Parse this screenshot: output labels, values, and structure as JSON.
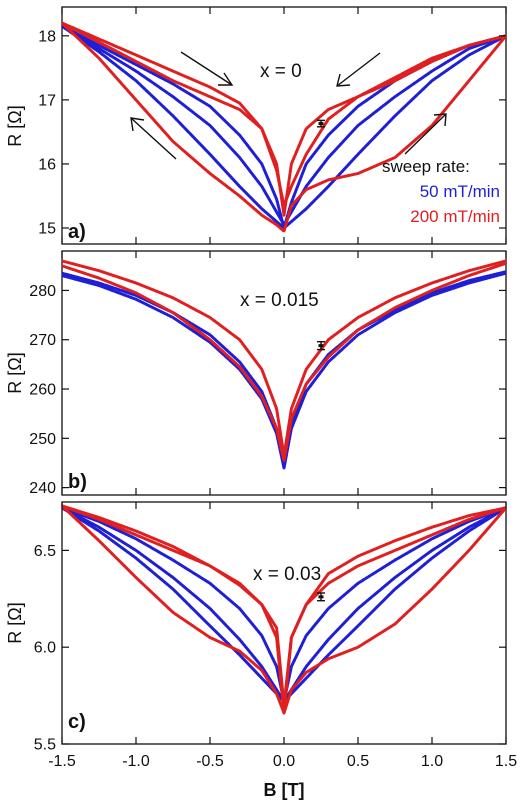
{
  "chart_data": [
    {
      "type": "line",
      "panel_label": "a)",
      "annotation": "x = 0",
      "ylabel": "R [Ω]",
      "xlim": [
        -1.5,
        1.5
      ],
      "ylim": [
        14.75,
        18.45
      ],
      "xticks": [
        -1.5,
        -1.0,
        -0.5,
        0.0,
        0.5,
        1.0,
        1.5
      ],
      "yticks": [
        15,
        16,
        17,
        18
      ],
      "ytick_labels": [
        "15",
        "16",
        "17",
        "18"
      ],
      "legend": {
        "title": "sweep rate:",
        "entries": [
          "50 mT/min",
          "200 mT/min"
        ],
        "placement": "bottom-right"
      },
      "error_bar": {
        "x": 0.25,
        "y": 16.63,
        "err": 0.05
      },
      "series": [
        {
          "color": "#1f1fd6",
          "x": [
            -1.5,
            -1.25,
            -1.0,
            -0.75,
            -0.5,
            -0.3,
            -0.15,
            -0.05,
            0.0,
            0.05,
            0.15,
            0.3,
            0.5,
            0.75,
            1.0,
            1.25,
            1.5
          ],
          "y": [
            18.15,
            17.8,
            17.45,
            17.05,
            16.6,
            16.1,
            15.65,
            15.25,
            15.05,
            15.25,
            15.65,
            16.1,
            16.6,
            17.05,
            17.45,
            17.8,
            18.0
          ]
        },
        {
          "color": "#1f1fd6",
          "x": [
            -1.5,
            -1.25,
            -1.0,
            -0.75,
            -0.5,
            -0.3,
            -0.15,
            -0.05,
            0.0,
            0.05,
            0.15,
            0.3,
            0.5,
            0.75,
            1.0,
            1.25,
            1.5
          ],
          "y": [
            18.15,
            17.75,
            17.3,
            16.75,
            16.15,
            15.65,
            15.3,
            15.1,
            15.0,
            15.4,
            16.0,
            16.45,
            16.9,
            17.3,
            17.6,
            17.85,
            18.0
          ]
        },
        {
          "color": "#1f1fd6",
          "x": [
            -1.5,
            -1.25,
            -1.0,
            -0.75,
            -0.5,
            -0.3,
            -0.15,
            -0.05,
            0.0,
            0.05,
            0.15,
            0.3,
            0.5,
            0.75,
            1.0,
            1.25,
            1.5
          ],
          "y": [
            18.15,
            17.85,
            17.55,
            17.25,
            16.9,
            16.45,
            16.0,
            15.45,
            15.0,
            15.1,
            15.3,
            15.65,
            16.15,
            16.75,
            17.3,
            17.7,
            18.0
          ]
        },
        {
          "color": "#e02020",
          "x": [
            -1.5,
            -1.25,
            -1.0,
            -0.75,
            -0.5,
            -0.3,
            -0.15,
            -0.05,
            0.0,
            0.05,
            0.15,
            0.3,
            0.5,
            0.75,
            1.0,
            1.25,
            1.5
          ],
          "y": [
            18.2,
            17.9,
            17.6,
            17.3,
            17.05,
            16.85,
            16.55,
            16.0,
            15.2,
            16.0,
            16.55,
            16.85,
            17.05,
            17.3,
            17.6,
            17.85,
            18.0
          ]
        },
        {
          "color": "#e02020",
          "x": [
            -1.5,
            -1.25,
            -1.0,
            -0.75,
            -0.5,
            -0.3,
            -0.15,
            -0.05,
            0.0,
            0.05,
            0.15,
            0.3,
            0.5,
            0.75,
            1.0,
            1.25,
            1.5
          ],
          "y": [
            18.2,
            17.65,
            17.0,
            16.35,
            15.85,
            15.5,
            15.2,
            15.05,
            14.95,
            15.35,
            15.6,
            15.75,
            15.85,
            16.1,
            16.6,
            17.3,
            18.0
          ]
        },
        {
          "color": "#e02020",
          "x": [
            -1.5,
            -1.25,
            -1.0,
            -0.75,
            -0.5,
            -0.3,
            -0.15,
            -0.05,
            0.0,
            0.05,
            0.15,
            0.3,
            0.5,
            0.75,
            1.0,
            1.25,
            1.5
          ],
          "y": [
            18.2,
            17.95,
            17.7,
            17.45,
            17.2,
            16.95,
            16.55,
            15.9,
            15.35,
            15.65,
            16.15,
            16.7,
            17.05,
            17.35,
            17.65,
            17.85,
            18.0
          ]
        }
      ]
    },
    {
      "type": "line",
      "panel_label": "b)",
      "annotation": "x = 0.015",
      "ylabel": "R [Ω]",
      "xlim": [
        -1.5,
        1.5
      ],
      "ylim": [
        238.5,
        288
      ],
      "xticks": [
        -1.5,
        -1.0,
        -0.5,
        0.0,
        0.5,
        1.0,
        1.5
      ],
      "yticks": [
        240,
        250,
        260,
        270,
        280
      ],
      "ytick_labels": [
        "240",
        "250",
        "260",
        "270",
        "280"
      ],
      "error_bar": {
        "x": 0.25,
        "y": 268.8,
        "err": 0.8
      },
      "series": [
        {
          "color": "#1f1fd6",
          "x": [
            -1.5,
            -1.25,
            -1.0,
            -0.75,
            -0.5,
            -0.3,
            -0.15,
            -0.05,
            0.0,
            0.05,
            0.15,
            0.3,
            0.5,
            0.75,
            1.0,
            1.25,
            1.5
          ],
          "y": [
            283.5,
            281.5,
            279.0,
            275.5,
            271.0,
            265.5,
            259.5,
            252.0,
            244.0,
            252.0,
            259.5,
            265.5,
            271.0,
            275.5,
            279.0,
            281.5,
            283.5
          ]
        },
        {
          "color": "#1f1fd6",
          "x": [
            -1.5,
            -1.25,
            -1.0,
            -0.75,
            -0.5,
            -0.3,
            -0.15,
            -0.05,
            0.0,
            0.05,
            0.15,
            0.3,
            0.5,
            0.75,
            1.0,
            1.25,
            1.5
          ],
          "y": [
            283.0,
            281.0,
            278.2,
            274.5,
            269.5,
            264.0,
            258.0,
            251.0,
            244.0,
            253.0,
            261.0,
            267.0,
            272.0,
            276.0,
            279.5,
            282.0,
            283.8
          ]
        },
        {
          "color": "#e02020",
          "x": [
            -1.5,
            -1.25,
            -1.0,
            -0.75,
            -0.5,
            -0.3,
            -0.15,
            -0.05,
            0.0,
            0.05,
            0.15,
            0.3,
            0.5,
            0.75,
            1.0,
            1.25,
            1.5
          ],
          "y": [
            286.0,
            284.0,
            281.5,
            278.5,
            274.5,
            270.0,
            264.0,
            256.0,
            246.5,
            256.0,
            264.0,
            270.0,
            274.5,
            278.5,
            281.5,
            284.0,
            286.0
          ]
        },
        {
          "color": "#e02020",
          "x": [
            -1.5,
            -1.25,
            -1.0,
            -0.75,
            -0.5,
            -0.3,
            -0.15,
            -0.05,
            0.0,
            0.05,
            0.15,
            0.3,
            0.5,
            0.75,
            1.0,
            1.25,
            1.5
          ],
          "y": [
            285.0,
            282.5,
            279.5,
            275.5,
            270.0,
            264.5,
            258.5,
            252.0,
            245.5,
            254.0,
            261.0,
            266.5,
            272.0,
            276.5,
            280.0,
            283.0,
            285.5
          ]
        }
      ]
    },
    {
      "type": "line",
      "panel_label": "c)",
      "annotation": "x = 0.03",
      "ylabel": "R [Ω]",
      "xlabel": "B [T]",
      "xlim": [
        -1.5,
        1.5
      ],
      "ylim": [
        5.5,
        6.75
      ],
      "xticks": [
        -1.5,
        -1.0,
        -0.5,
        0.0,
        0.5,
        1.0,
        1.5
      ],
      "xtick_labels": [
        "-1.5",
        "-1.0",
        "-0.5",
        "0.0",
        "0.5",
        "1.0",
        "1.5"
      ],
      "yticks": [
        5.5,
        6.0,
        6.5
      ],
      "ytick_labels": [
        "5.5",
        "6.0",
        "6.5"
      ],
      "error_bar": {
        "x": 0.25,
        "y": 6.26,
        "err": 0.02
      },
      "series": [
        {
          "color": "#1f1fd6",
          "x": [
            -1.5,
            -1.25,
            -1.0,
            -0.75,
            -0.5,
            -0.3,
            -0.15,
            -0.05,
            0.0,
            0.05,
            0.15,
            0.3,
            0.5,
            0.75,
            1.0,
            1.25,
            1.5
          ],
          "y": [
            6.72,
            6.62,
            6.5,
            6.36,
            6.2,
            6.04,
            5.9,
            5.78,
            5.72,
            5.78,
            5.9,
            6.04,
            6.2,
            6.36,
            6.5,
            6.62,
            6.72
          ]
        },
        {
          "color": "#1f1fd6",
          "x": [
            -1.5,
            -1.25,
            -1.0,
            -0.75,
            -0.5,
            -0.3,
            -0.15,
            -0.05,
            0.0,
            0.05,
            0.15,
            0.3,
            0.5,
            0.75,
            1.0,
            1.25,
            1.5
          ],
          "y": [
            6.72,
            6.6,
            6.46,
            6.3,
            6.11,
            5.96,
            5.84,
            5.76,
            5.72,
            5.9,
            6.06,
            6.2,
            6.33,
            6.45,
            6.56,
            6.65,
            6.72
          ]
        },
        {
          "color": "#1f1fd6",
          "x": [
            -1.5,
            -1.25,
            -1.0,
            -0.75,
            -0.5,
            -0.3,
            -0.15,
            -0.05,
            0.0,
            0.05,
            0.15,
            0.3,
            0.5,
            0.75,
            1.0,
            1.25,
            1.5
          ],
          "y": [
            6.72,
            6.65,
            6.56,
            6.45,
            6.33,
            6.2,
            6.06,
            5.9,
            5.72,
            5.76,
            5.84,
            5.96,
            6.11,
            6.3,
            6.46,
            6.6,
            6.72
          ]
        },
        {
          "color": "#e02020",
          "x": [
            -1.5,
            -1.25,
            -1.0,
            -0.75,
            -0.5,
            -0.3,
            -0.15,
            -0.05,
            0.0,
            0.05,
            0.15,
            0.3,
            0.5,
            0.75,
            1.0,
            1.25,
            1.5
          ],
          "y": [
            6.73,
            6.66,
            6.58,
            6.5,
            6.42,
            6.33,
            6.22,
            6.05,
            5.66,
            6.05,
            6.22,
            6.33,
            6.42,
            6.5,
            6.58,
            6.66,
            6.72
          ]
        },
        {
          "color": "#e02020",
          "x": [
            -1.5,
            -1.25,
            -1.0,
            -0.75,
            -0.5,
            -0.3,
            -0.15,
            -0.05,
            0.0,
            0.05,
            0.15,
            0.3,
            0.5,
            0.75,
            1.0,
            1.25,
            1.5
          ],
          "y": [
            6.73,
            6.55,
            6.36,
            6.18,
            6.05,
            5.98,
            5.88,
            5.76,
            5.66,
            5.78,
            5.87,
            5.94,
            6.0,
            6.12,
            6.3,
            6.5,
            6.72
          ]
        },
        {
          "color": "#e02020",
          "x": [
            -1.5,
            -1.25,
            -1.0,
            -0.75,
            -0.5,
            -0.3,
            -0.15,
            -0.05,
            0.0,
            0.05,
            0.15,
            0.3,
            0.5,
            0.75,
            1.0,
            1.25,
            1.5
          ],
          "y": [
            6.73,
            6.67,
            6.6,
            6.52,
            6.42,
            6.32,
            6.22,
            6.1,
            5.7,
            6.05,
            6.22,
            6.38,
            6.47,
            6.55,
            6.62,
            6.68,
            6.72
          ]
        }
      ]
    }
  ]
}
